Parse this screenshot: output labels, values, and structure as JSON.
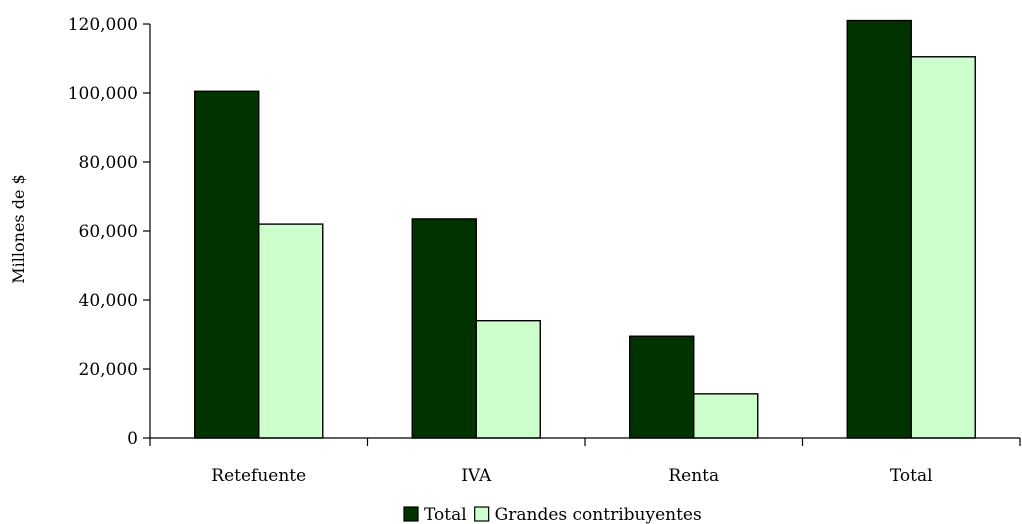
{
  "chart_data": {
    "type": "bar",
    "categories": [
      "Retefuente",
      "IVA",
      "Renta",
      "Total"
    ],
    "series": [
      {
        "name": "Total",
        "values": [
          100500,
          63500,
          29500,
          121000
        ],
        "color": "#003300"
      },
      {
        "name": "Grandes contribuyentes",
        "values": [
          62000,
          34000,
          12800,
          110500
        ],
        "color": "#ccffcc"
      }
    ],
    "ylabel": "Millones de $",
    "xlabel": "",
    "ylim": [
      0,
      120000
    ],
    "yticks": [
      0,
      20000,
      40000,
      60000,
      80000,
      100000,
      120000
    ],
    "ytick_labels": [
      "0",
      "20,000",
      "40,000",
      "60,000",
      "80,000",
      "100,000",
      "120,000"
    ],
    "grid": false,
    "legend_position": "bottom-center"
  }
}
